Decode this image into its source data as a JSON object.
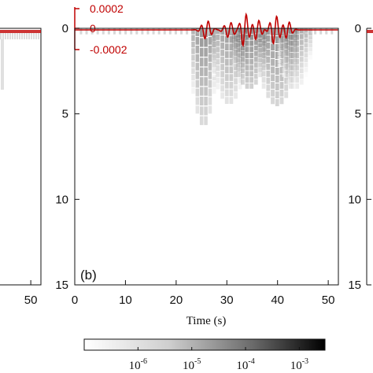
{
  "chart_data": {
    "type": "heatmap",
    "panel_label": "(b)",
    "xlabel": "Time (s)",
    "ylabel": "",
    "xlim": [
      0,
      52
    ],
    "ylim": [
      15,
      0
    ],
    "x_ticks": [
      0,
      10,
      20,
      30,
      40,
      50
    ],
    "y_ticks": [
      0,
      5,
      10,
      15
    ],
    "left_panel_x_ticks": [
      50
    ],
    "right_panel_y_ticks": [
      0,
      5,
      10,
      15
    ],
    "seismogram": {
      "color": "#c00000",
      "tick_labels": [
        "0.0002",
        "0",
        "-0.0002"
      ],
      "tick_values": [
        0.0002,
        0,
        -0.0002
      ]
    },
    "colorbar": {
      "scale": "log",
      "range": [
        1e-07,
        0.003
      ],
      "labels": [
        {
          "base": "10",
          "exp": "-6"
        },
        {
          "base": "10",
          "exp": "-5"
        },
        {
          "base": "10",
          "exp": "-4"
        },
        {
          "base": "10",
          "exp": "-3"
        }
      ],
      "tick_values": [
        1e-06,
        1e-05,
        0.0001,
        0.001
      ]
    },
    "intensity_blobs": [
      {
        "t_start": 23,
        "t_end": 28,
        "depth_top": 0,
        "depth_bottom": 5.8,
        "peak_log10": -3.6
      },
      {
        "t_start": 27,
        "t_end": 34,
        "depth_top": 0,
        "depth_bottom": 4.5,
        "peak_log10": -3.9
      },
      {
        "t_start": 31,
        "t_end": 38,
        "depth_top": 0,
        "depth_bottom": 3.6,
        "peak_log10": -3.3
      },
      {
        "t_start": 36,
        "t_end": 44,
        "depth_top": 0,
        "depth_bottom": 4.6,
        "peak_log10": -3.5
      },
      {
        "t_start": 40,
        "t_end": 47,
        "depth_top": 0,
        "depth_bottom": 3.6,
        "peak_log10": -4.2
      }
    ]
  }
}
